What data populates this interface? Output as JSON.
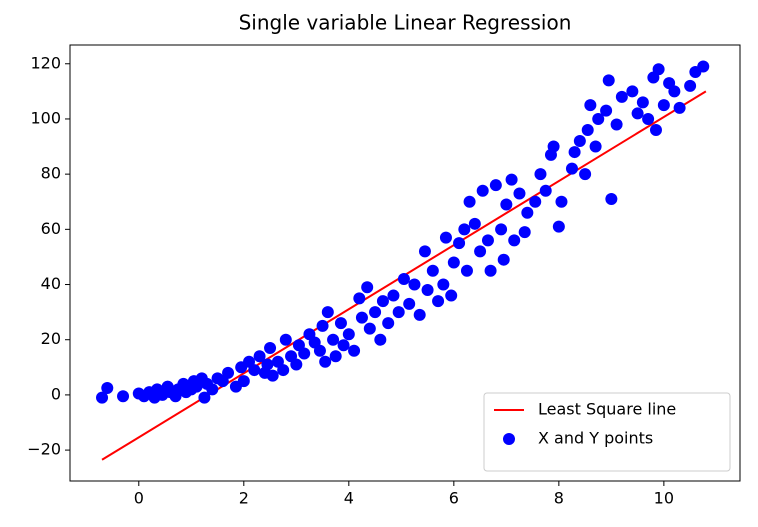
{
  "chart_data": {
    "type": "scatter",
    "title": "Single variable Linear Regression",
    "xlim": [
      -1.31,
      11.45
    ],
    "ylim": [
      -31.2,
      126.8
    ],
    "xticks": [
      0,
      2,
      4,
      6,
      8,
      10
    ],
    "yticks": [
      {
        "value": -20,
        "label": "−20"
      },
      0,
      20,
      40,
      60,
      80,
      100,
      120
    ],
    "grid": false,
    "legend": "lower right",
    "series": [
      {
        "name": "Least Square line",
        "color": "#ff0000",
        "type": "line",
        "x": [
          -0.7,
          10.8
        ],
        "values": [
          -23.5,
          110
        ]
      },
      {
        "name": "X and Y points",
        "color": "#0000ff",
        "type": "scatter",
        "x": [
          -0.7,
          -0.6,
          -0.3,
          0,
          0.1,
          0.2,
          0.3,
          0.35,
          0.45,
          0.55,
          0.6,
          0.7,
          0.75,
          0.85,
          0.9,
          1.0,
          1.05,
          1.1,
          1.2,
          1.25,
          1.3,
          1.4,
          1.5,
          1.6,
          1.7,
          1.85,
          1.95,
          2.0,
          2.1,
          2.2,
          2.3,
          2.4,
          2.45,
          2.5,
          2.55,
          2.65,
          2.75,
          2.8,
          2.9,
          3.0,
          3.05,
          3.15,
          3.25,
          3.35,
          3.45,
          3.5,
          3.55,
          3.6,
          3.7,
          3.75,
          3.85,
          3.9,
          4.0,
          4.1,
          4.2,
          4.25,
          4.35,
          4.4,
          4.5,
          4.6,
          4.65,
          4.75,
          4.85,
          4.95,
          5.05,
          5.15,
          5.25,
          5.35,
          5.45,
          5.5,
          5.6,
          5.7,
          5.8,
          5.85,
          5.95,
          6.0,
          6.1,
          6.2,
          6.25,
          6.3,
          6.4,
          6.5,
          6.55,
          6.65,
          6.7,
          6.8,
          6.9,
          6.95,
          7.0,
          7.1,
          7.15,
          7.25,
          7.35,
          7.4,
          7.55,
          7.65,
          7.75,
          7.85,
          7.9,
          8.0,
          8.05,
          8.25,
          8.3,
          8.4,
          8.5,
          8.55,
          8.6,
          8.7,
          8.75,
          8.9,
          8.95,
          9.0,
          9.1,
          9.2,
          9.4,
          9.5,
          9.6,
          9.7,
          9.8,
          9.85,
          9.9,
          10.0,
          10.1,
          10.2,
          10.3,
          10.5,
          10.6,
          10.75
        ],
        "values": [
          -1,
          2.5,
          -0.5,
          0.5,
          -0.5,
          1,
          -1,
          2,
          0,
          3,
          1,
          -0.5,
          2,
          4,
          1,
          2,
          5,
          3,
          6,
          -1,
          4,
          2,
          6,
          5,
          8,
          3,
          10,
          5,
          12,
          9,
          14,
          8,
          11,
          17,
          7,
          12,
          9,
          20,
          14,
          11,
          18,
          15,
          22,
          19,
          16,
          25,
          12,
          30,
          20,
          14,
          26,
          18,
          22,
          16,
          35,
          28,
          39,
          24,
          30,
          20,
          34,
          26,
          36,
          30,
          42,
          33,
          40,
          29,
          52,
          38,
          45,
          34,
          40,
          57,
          36,
          48,
          55,
          60,
          45,
          70,
          62,
          52,
          74,
          56,
          45,
          76,
          60,
          49,
          69,
          78,
          56,
          73,
          59,
          66,
          70,
          80,
          74,
          87,
          90,
          61,
          70,
          82,
          88,
          92,
          80,
          96,
          105,
          90,
          100,
          103,
          114,
          71,
          98,
          108,
          110,
          102,
          106,
          100,
          115,
          96,
          118,
          105,
          113,
          110,
          104,
          112,
          117,
          119
        ]
      }
    ]
  }
}
